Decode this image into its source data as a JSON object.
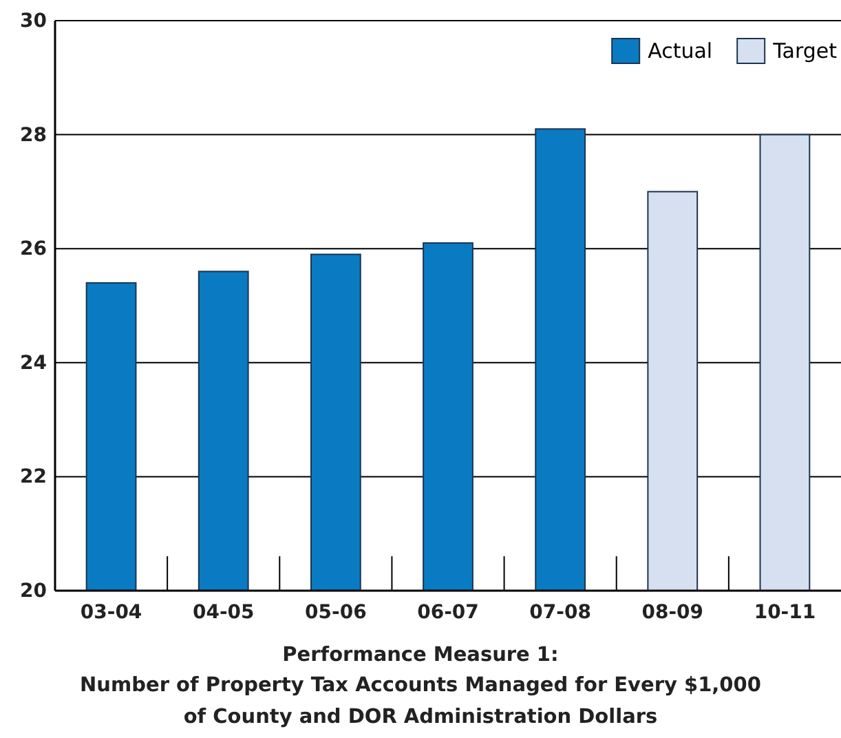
{
  "chart_data": {
    "type": "bar",
    "title": "Performance Measure 1:",
    "subtitle": "Number of Property Tax Accounts Managed for Every $1,000 of County and DOR Administration Dollars",
    "categories": [
      "03-04",
      "04-05",
      "05-06",
      "06-07",
      "07-08",
      "08-09",
      "10-11"
    ],
    "series": [
      {
        "name": "Actual",
        "color": "#0a7bc2",
        "values": [
          25.4,
          25.6,
          25.9,
          26.1,
          28.1,
          null,
          null
        ]
      },
      {
        "name": "Target",
        "color": "#d7e0f1",
        "values": [
          null,
          null,
          null,
          null,
          null,
          27.0,
          28.0
        ]
      }
    ],
    "ylim": [
      20,
      30
    ],
    "yticks": [
      20,
      22,
      24,
      26,
      28,
      30
    ],
    "grid": "y",
    "legend": "top right"
  }
}
